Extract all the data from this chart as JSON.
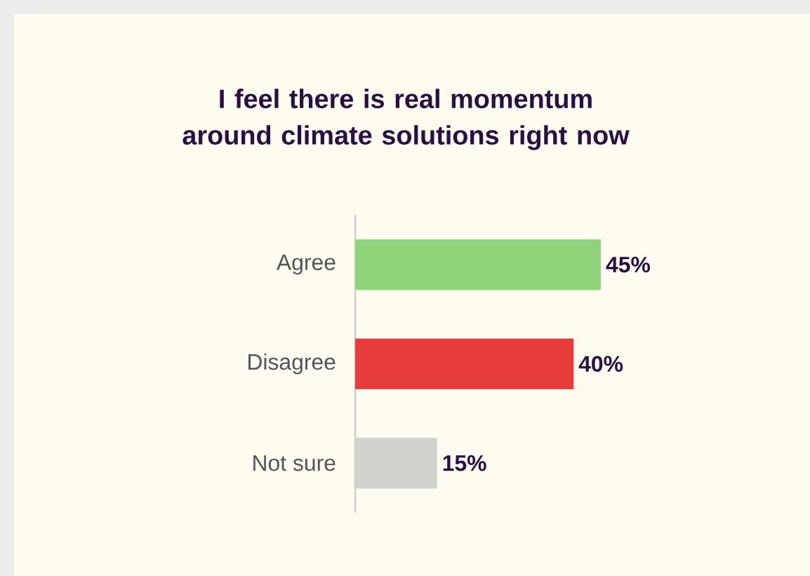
{
  "chart_data": {
    "type": "bar",
    "orientation": "horizontal",
    "title": "I feel there is real momentum around climate solutions right now",
    "categories": [
      "Agree",
      "Disagree",
      "Not sure"
    ],
    "values": [
      45,
      40,
      15
    ],
    "colors": [
      "#8fd47a",
      "#e63c3c",
      "#d2d2cc"
    ],
    "value_labels": [
      "45%",
      "40%",
      "15%"
    ]
  }
}
